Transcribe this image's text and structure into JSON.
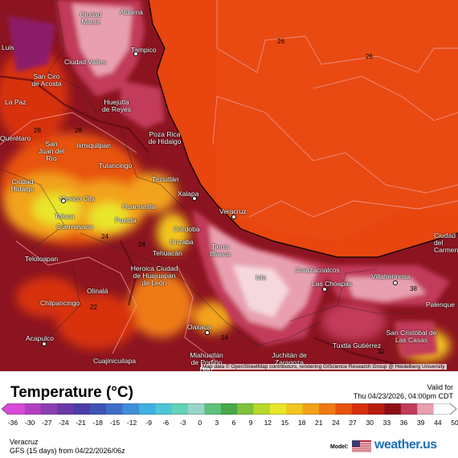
{
  "map": {
    "attribution": "Map data © OpenStreetMap contributors, rendering GIScience Research Group @ Heidelberg University",
    "cities": [
      {
        "name": "Ciudad Mante",
        "id": "ciudad-mante"
      },
      {
        "name": "Aldama",
        "id": "aldama"
      },
      {
        "name": "Luis",
        "id": "luis"
      },
      {
        "name": "Tampico",
        "id": "tampico"
      },
      {
        "name": "Ciudad Valles",
        "id": "ciudad-valles"
      },
      {
        "name": "San Ciro de Acosta",
        "id": "san-ciro-de-acosta"
      },
      {
        "name": "La Paz",
        "id": "la-paz"
      },
      {
        "name": "Huejutla de Reyes",
        "id": "huejutla-de-reyes"
      },
      {
        "name": "Poza Rica de Hidalgo",
        "id": "poza-rica-de-hidalgo"
      },
      {
        "name": "Querétaro",
        "id": "queretaro"
      },
      {
        "name": "San Juan del Río",
        "id": "san-juan-del-rio"
      },
      {
        "name": "Ixmiquilpan",
        "id": "ixmiquilpan"
      },
      {
        "name": "Tulancingo",
        "id": "tulancingo"
      },
      {
        "name": "Teziutlán",
        "id": "teziutlan"
      },
      {
        "name": "Ciudad Hidalgo",
        "id": "ciudad-hidalgo"
      },
      {
        "name": "Mexico City",
        "id": "mexico-city"
      },
      {
        "name": "Xalapa",
        "id": "xalapa"
      },
      {
        "name": "Huamantla",
        "id": "huamantla"
      },
      {
        "name": "Veracruz",
        "id": "veracruz"
      },
      {
        "name": "Toluca",
        "id": "toluca"
      },
      {
        "name": "Puebla",
        "id": "puebla"
      },
      {
        "name": "Córdoba",
        "id": "cordoba"
      },
      {
        "name": "Cuernavaca",
        "id": "cuernavaca"
      },
      {
        "name": "Orizaba",
        "id": "orizaba"
      },
      {
        "name": "Tierra Blanca",
        "id": "tierra-blanca"
      },
      {
        "name": "Ciudad del Carmen",
        "id": "ciudad-del-carmen"
      },
      {
        "name": "Tehuacán",
        "id": "tehuacan"
      },
      {
        "name": "Teloloapan",
        "id": "teloloapan"
      },
      {
        "name": "Heroica Ciudad de Huajuapan de León",
        "id": "huajuapan"
      },
      {
        "name": "Coatzacoalcos",
        "id": "coatzacoalcos"
      },
      {
        "name": "Isla",
        "id": "isla"
      },
      {
        "name": "Las Choapas",
        "id": "las-choapas"
      },
      {
        "name": "Villahermosa",
        "id": "villahermosa"
      },
      {
        "name": "Olinalá",
        "id": "olinala"
      },
      {
        "name": "Chilpancingo",
        "id": "chilpancingo"
      },
      {
        "name": "Palenque",
        "id": "palenque"
      },
      {
        "name": "Oaxaca",
        "id": "oaxaca"
      },
      {
        "name": "Acapulco",
        "id": "acapulco"
      },
      {
        "name": "San Cristóbal de Las Casas",
        "id": "san-cristobal"
      },
      {
        "name": "Tuxtla Gutiérrez",
        "id": "tuxtla-gutierrez"
      },
      {
        "name": "Miahuatlán de Porfirio Díaz",
        "id": "miahuatlan"
      },
      {
        "name": "Juchitán de Zaragoza",
        "id": "juchitan"
      },
      {
        "name": "Cuajinicuilapa",
        "id": "cuajinicuilapa"
      }
    ],
    "contour_labels": [
      "26",
      "26",
      "28",
      "28",
      "24",
      "24",
      "22",
      "24",
      "38",
      "32"
    ]
  },
  "legend": {
    "title": "Temperature (°C)",
    "valid_label": "Valid for",
    "valid_time": "Thu 04/23/2026, 04:00pm CDT",
    "ticks": [
      "-36",
      "-30",
      "-27",
      "-24",
      "-21",
      "-18",
      "-15",
      "-12",
      "-9",
      "-6",
      "-3",
      "0",
      "3",
      "6",
      "9",
      "12",
      "15",
      "18",
      "21",
      "24",
      "27",
      "30",
      "33",
      "36",
      "39",
      "44",
      "50"
    ],
    "colors": [
      "#d94ad9",
      "#b23fc2",
      "#8a3fb0",
      "#6a3aa8",
      "#4b3ca6",
      "#3f52b5",
      "#3f6ec8",
      "#3f8fd8",
      "#3fb0e0",
      "#4cc7d6",
      "#62d2b8",
      "#9ad6c8",
      "#5ec27a",
      "#48a84a",
      "#7ec23a",
      "#b7d82e",
      "#e8e62a",
      "#f2c51f",
      "#f2a21a",
      "#ee7a14",
      "#e8520f",
      "#d8300c",
      "#b81c10",
      "#8c0f18",
      "#c23a5a",
      "#e8a0b0",
      "#ffffff"
    ]
  },
  "footer": {
    "location": "Veracruz",
    "run": "GFS (15 days) from  04/22/2026/06z",
    "model_label": "Model:",
    "brand": "weather.us"
  }
}
